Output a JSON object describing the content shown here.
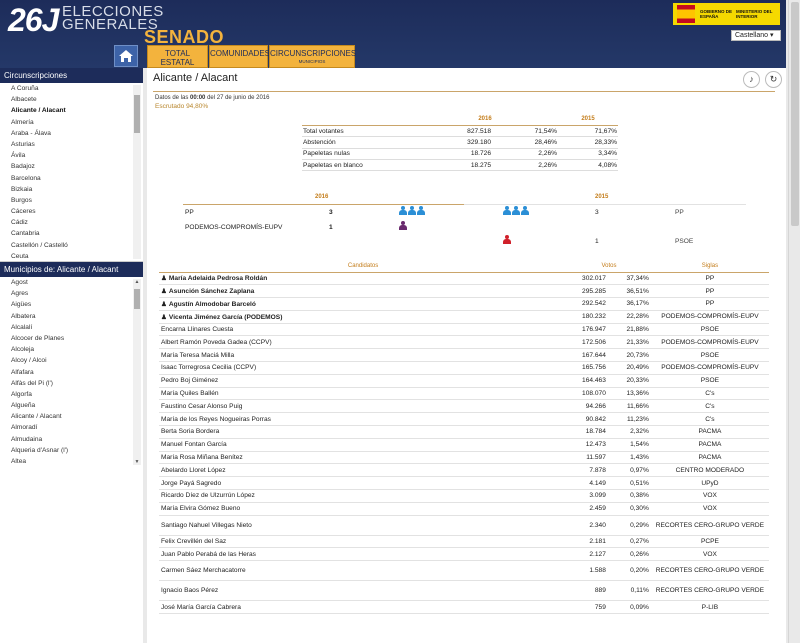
{
  "header": {
    "logo_number": "26J",
    "logo_line1": "ELECCIONES",
    "logo_line2": "GENERALES",
    "logo_senado": "SENADO",
    "gov_line1": "GOBIERNO DE ESPAÑA",
    "gov_line2": "MINISTERIO DEL INTERIOR",
    "language": "Castellano ▾"
  },
  "tabs": [
    {
      "label": "TOTAL ESTATAL",
      "sub": ""
    },
    {
      "label": "COMUNIDADES",
      "sub": ""
    },
    {
      "label": "CIRCUNSCRIPCIONES",
      "sub": "MUNICIPIOS"
    }
  ],
  "sidebar": {
    "circ_title": "Circunscripciones",
    "circ_items": [
      "A Coruña",
      "Albacete",
      "Alicante / Alacant",
      "Almería",
      "Araba - Álava",
      "Asturias",
      "Ávila",
      "Badajoz",
      "Barcelona",
      "Bizkaia",
      "Burgos",
      "Cáceres",
      "Cádiz",
      "Cantabria",
      "Castellón / Castelló",
      "Ceuta"
    ],
    "circ_active": "Alicante / Alacant",
    "muni_title": "Municipios de: Alicante / Alacant",
    "muni_items": [
      "Agost",
      "Agres",
      "Aigües",
      "Albatera",
      "Alcalalí",
      "Alcocer de Planes",
      "Alcoleja",
      "Alcoy / Alcoi",
      "Alfafara",
      "Alfàs del Pi (l')",
      "Algorfa",
      "Algueña",
      "Alicante / Alacant",
      "Almoradí",
      "Almudaina",
      "Alqueria d'Asnar (l')",
      "Altea"
    ]
  },
  "main": {
    "title": "Alicante / Alacant",
    "date_prefix": "Datos de las",
    "date_time": "00:00",
    "date_suffix": "del 27 de junio de 2016",
    "escrutado": "Escrutado 94,80%",
    "year_2016": "2016",
    "year_2015": "2015"
  },
  "participation": [
    {
      "label": "Total votantes",
      "v2016": "827.518",
      "p2016": "71,54%",
      "p2015": "71,67%"
    },
    {
      "label": "Abstención",
      "v2016": "329.180",
      "p2016": "28,46%",
      "p2015": "28,33%"
    },
    {
      "label": "Papeletas nulas",
      "v2016": "18.726",
      "p2016": "2,26%",
      "p2015": "3,34%"
    },
    {
      "label": "Papeletas en blanco",
      "v2016": "18.275",
      "p2016": "2,26%",
      "p2015": "4,08%"
    }
  ],
  "seats": {
    "rows": [
      {
        "party_2016": "PP",
        "seats_2016": "3",
        "seats_2015": "3",
        "party_2015": "PP",
        "icons_2016": 3,
        "icons_2015": 3,
        "color": "#2b8fd6"
      },
      {
        "party_2016": "PODEMOS-COMPROMÍS-EUPV",
        "seats_2016": "1",
        "seats_2015": "",
        "party_2015": "",
        "icons_2016": 1,
        "icons_2015": 0,
        "color": "#6a2a6e"
      },
      {
        "party_2016": "",
        "seats_2016": "",
        "seats_2015": "1",
        "party_2015": "PSOE",
        "icons_2016": 0,
        "icons_2015": 1,
        "color": "#d0202a"
      }
    ]
  },
  "candidates_header": {
    "name": "Candidatos",
    "votes": "Votos",
    "sigla": "Siglas"
  },
  "candidates": [
    {
      "name": "María Adelaida Pedrosa Roldán",
      "votes": "302.017",
      "pct": "37,34%",
      "sigla": "PP",
      "elected": true
    },
    {
      "name": "Asunción Sánchez Zaplana",
      "votes": "295.285",
      "pct": "36,51%",
      "sigla": "PP",
      "elected": true
    },
    {
      "name": "Agustín Almodobar Barceló",
      "votes": "292.542",
      "pct": "36,17%",
      "sigla": "PP",
      "elected": true
    },
    {
      "name": "Vicenta Jiménez García (PODEMOS)",
      "votes": "180.232",
      "pct": "22,28%",
      "sigla": "PODEMOS-COMPROMÍS-EUPV",
      "elected": true
    },
    {
      "name": "Encarna Llinares Cuesta",
      "votes": "176.947",
      "pct": "21,88%",
      "sigla": "PSOE",
      "elected": false
    },
    {
      "name": "Albert Ramón Poveda Gadea (CCPV)",
      "votes": "172.506",
      "pct": "21,33%",
      "sigla": "PODEMOS-COMPROMÍS-EUPV",
      "elected": false
    },
    {
      "name": "María Teresa Maciá Milla",
      "votes": "167.644",
      "pct": "20,73%",
      "sigla": "PSOE",
      "elected": false
    },
    {
      "name": "Isaac Torregrosa Cecilia (CCPV)",
      "votes": "165.756",
      "pct": "20,49%",
      "sigla": "PODEMOS-COMPROMÍS-EUPV",
      "elected": false
    },
    {
      "name": "Pedro Boj Giménez",
      "votes": "164.463",
      "pct": "20,33%",
      "sigla": "PSOE",
      "elected": false
    },
    {
      "name": "María Quiles Ballén",
      "votes": "108.070",
      "pct": "13,36%",
      "sigla": "C's",
      "elected": false
    },
    {
      "name": "Faustino Cesar Alonso Puig",
      "votes": "94.266",
      "pct": "11,66%",
      "sigla": "C's",
      "elected": false
    },
    {
      "name": "María de los Reyes Nogueiras Porras",
      "votes": "90.842",
      "pct": "11,23%",
      "sigla": "C's",
      "elected": false
    },
    {
      "name": "Berta Soria Bordera",
      "votes": "18.784",
      "pct": "2,32%",
      "sigla": "PACMA",
      "elected": false
    },
    {
      "name": "Manuel Fontan García",
      "votes": "12.473",
      "pct": "1,54%",
      "sigla": "PACMA",
      "elected": false
    },
    {
      "name": "María Rosa Miñana Benítez",
      "votes": "11.597",
      "pct": "1,43%",
      "sigla": "PACMA",
      "elected": false
    },
    {
      "name": "Abelardo Lloret López",
      "votes": "7.878",
      "pct": "0,97%",
      "sigla": "CENTRO MODERADO",
      "elected": false
    },
    {
      "name": "Jorge Payá Sagredo",
      "votes": "4.149",
      "pct": "0,51%",
      "sigla": "UPyD",
      "elected": false
    },
    {
      "name": "Ricardo Díez de Ulzurrún López",
      "votes": "3.099",
      "pct": "0,38%",
      "sigla": "VOX",
      "elected": false
    },
    {
      "name": "María Elvira Gómez Bueno",
      "votes": "2.459",
      "pct": "0,30%",
      "sigla": "VOX",
      "elected": false
    },
    {
      "name": "Santiago Nahuel Villegas Nieto",
      "votes": "2.340",
      "pct": "0,29%",
      "sigla": "RECORTES CERO-GRUPO VERDE",
      "elected": false
    },
    {
      "name": "Felix Crevillén del Saz",
      "votes": "2.181",
      "pct": "0,27%",
      "sigla": "PCPE",
      "elected": false
    },
    {
      "name": "Juan Pablo Perabá de las Heras",
      "votes": "2.127",
      "pct": "0,26%",
      "sigla": "VOX",
      "elected": false
    },
    {
      "name": "Carmen Sáez Merchacatorre",
      "votes": "1.588",
      "pct": "0,20%",
      "sigla": "RECORTES CERO-GRUPO VERDE",
      "elected": false
    },
    {
      "name": "Ignacio Baos Pérez",
      "votes": "889",
      "pct": "0,11%",
      "sigla": "RECORTES CERO-GRUPO VERDE",
      "elected": false
    },
    {
      "name": "José María García Cabrera",
      "votes": "759",
      "pct": "0,09%",
      "sigla": "P-LIB",
      "elected": false
    }
  ]
}
